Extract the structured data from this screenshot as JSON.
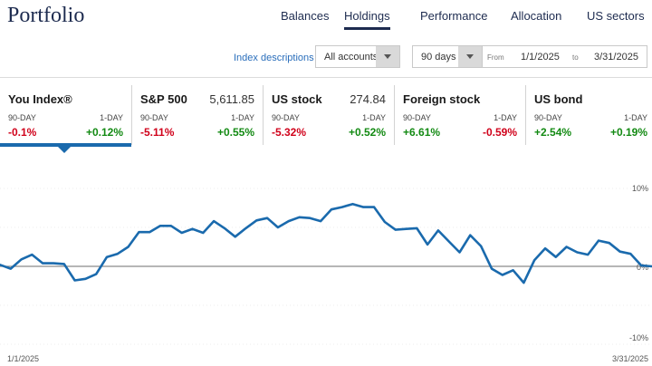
{
  "brand": "Portfolio",
  "nav": {
    "tabs": [
      {
        "label": "Balances",
        "active": false
      },
      {
        "label": "Holdings",
        "active": true
      },
      {
        "label": "Performance",
        "active": false
      },
      {
        "label": "Allocation",
        "active": false
      },
      {
        "label": "US sectors",
        "active": false
      }
    ]
  },
  "controls": {
    "index_link": "Index descriptions",
    "accounts": "All accounts",
    "period": "90 days",
    "from_label": "From",
    "from_date": "1/1/2025",
    "to_label": "to",
    "to_date": "3/31/2025"
  },
  "cards": [
    {
      "name": "You Index®",
      "value": "",
      "p90_label": "90-DAY",
      "p1_label": "1-DAY",
      "p90": "-0.1%",
      "p1": "+0.12%",
      "active": true
    },
    {
      "name": "S&P 500",
      "value": "5,611.85",
      "p90_label": "90-DAY",
      "p1_label": "1-DAY",
      "p90": "-5.11%",
      "p1": "+0.55%",
      "active": false
    },
    {
      "name": "US stock",
      "value": "274.84",
      "p90_label": "90-DAY",
      "p1_label": "1-DAY",
      "p90": "-5.32%",
      "p1": "+0.52%",
      "active": false
    },
    {
      "name": "Foreign stock",
      "value": "",
      "p90_label": "90-DAY",
      "p1_label": "1-DAY",
      "p90": "+6.61%",
      "p1": "-0.59%",
      "active": false
    },
    {
      "name": "US bond",
      "value": "",
      "p90_label": "90-DAY",
      "p1_label": "1-DAY",
      "p90": "+2.54%",
      "p1": "+0.19%",
      "active": false
    }
  ],
  "colors": {
    "line": "#1a6aad",
    "negative": "#d0021b",
    "positive": "#138a13",
    "nav": "#1d2b4f"
  },
  "chart_data": {
    "type": "line",
    "title": "",
    "xlabel": "",
    "ylabel": "",
    "ylim": [
      -10,
      10
    ],
    "y_tick_labels": [
      "10%",
      "0%",
      "-10%"
    ],
    "x_tick_labels": [
      "1/1/2025",
      "3/31/2025"
    ],
    "series": [
      {
        "values": [
          0.2,
          -0.3,
          0.9,
          1.5,
          0.4,
          0.4,
          0.3,
          -1.8,
          -1.6,
          -1.0,
          1.2,
          1.6,
          2.5,
          4.4,
          4.4,
          5.2,
          5.2,
          4.3,
          4.8,
          4.3,
          5.8,
          4.9,
          3.8,
          4.9,
          5.9,
          6.2,
          5.0,
          5.8,
          6.3,
          6.2,
          5.8,
          7.3,
          7.6,
          8.0,
          7.6,
          7.6,
          5.7,
          4.7,
          4.8,
          4.9,
          2.8,
          4.6,
          3.2,
          1.8,
          4.0,
          2.6,
          -0.3,
          -1.1,
          -0.5,
          -2.1,
          0.8,
          2.3,
          1.2,
          2.5,
          1.8,
          1.5,
          3.3,
          3.0,
          1.9,
          1.6,
          0.1,
          0.0
        ]
      }
    ]
  }
}
